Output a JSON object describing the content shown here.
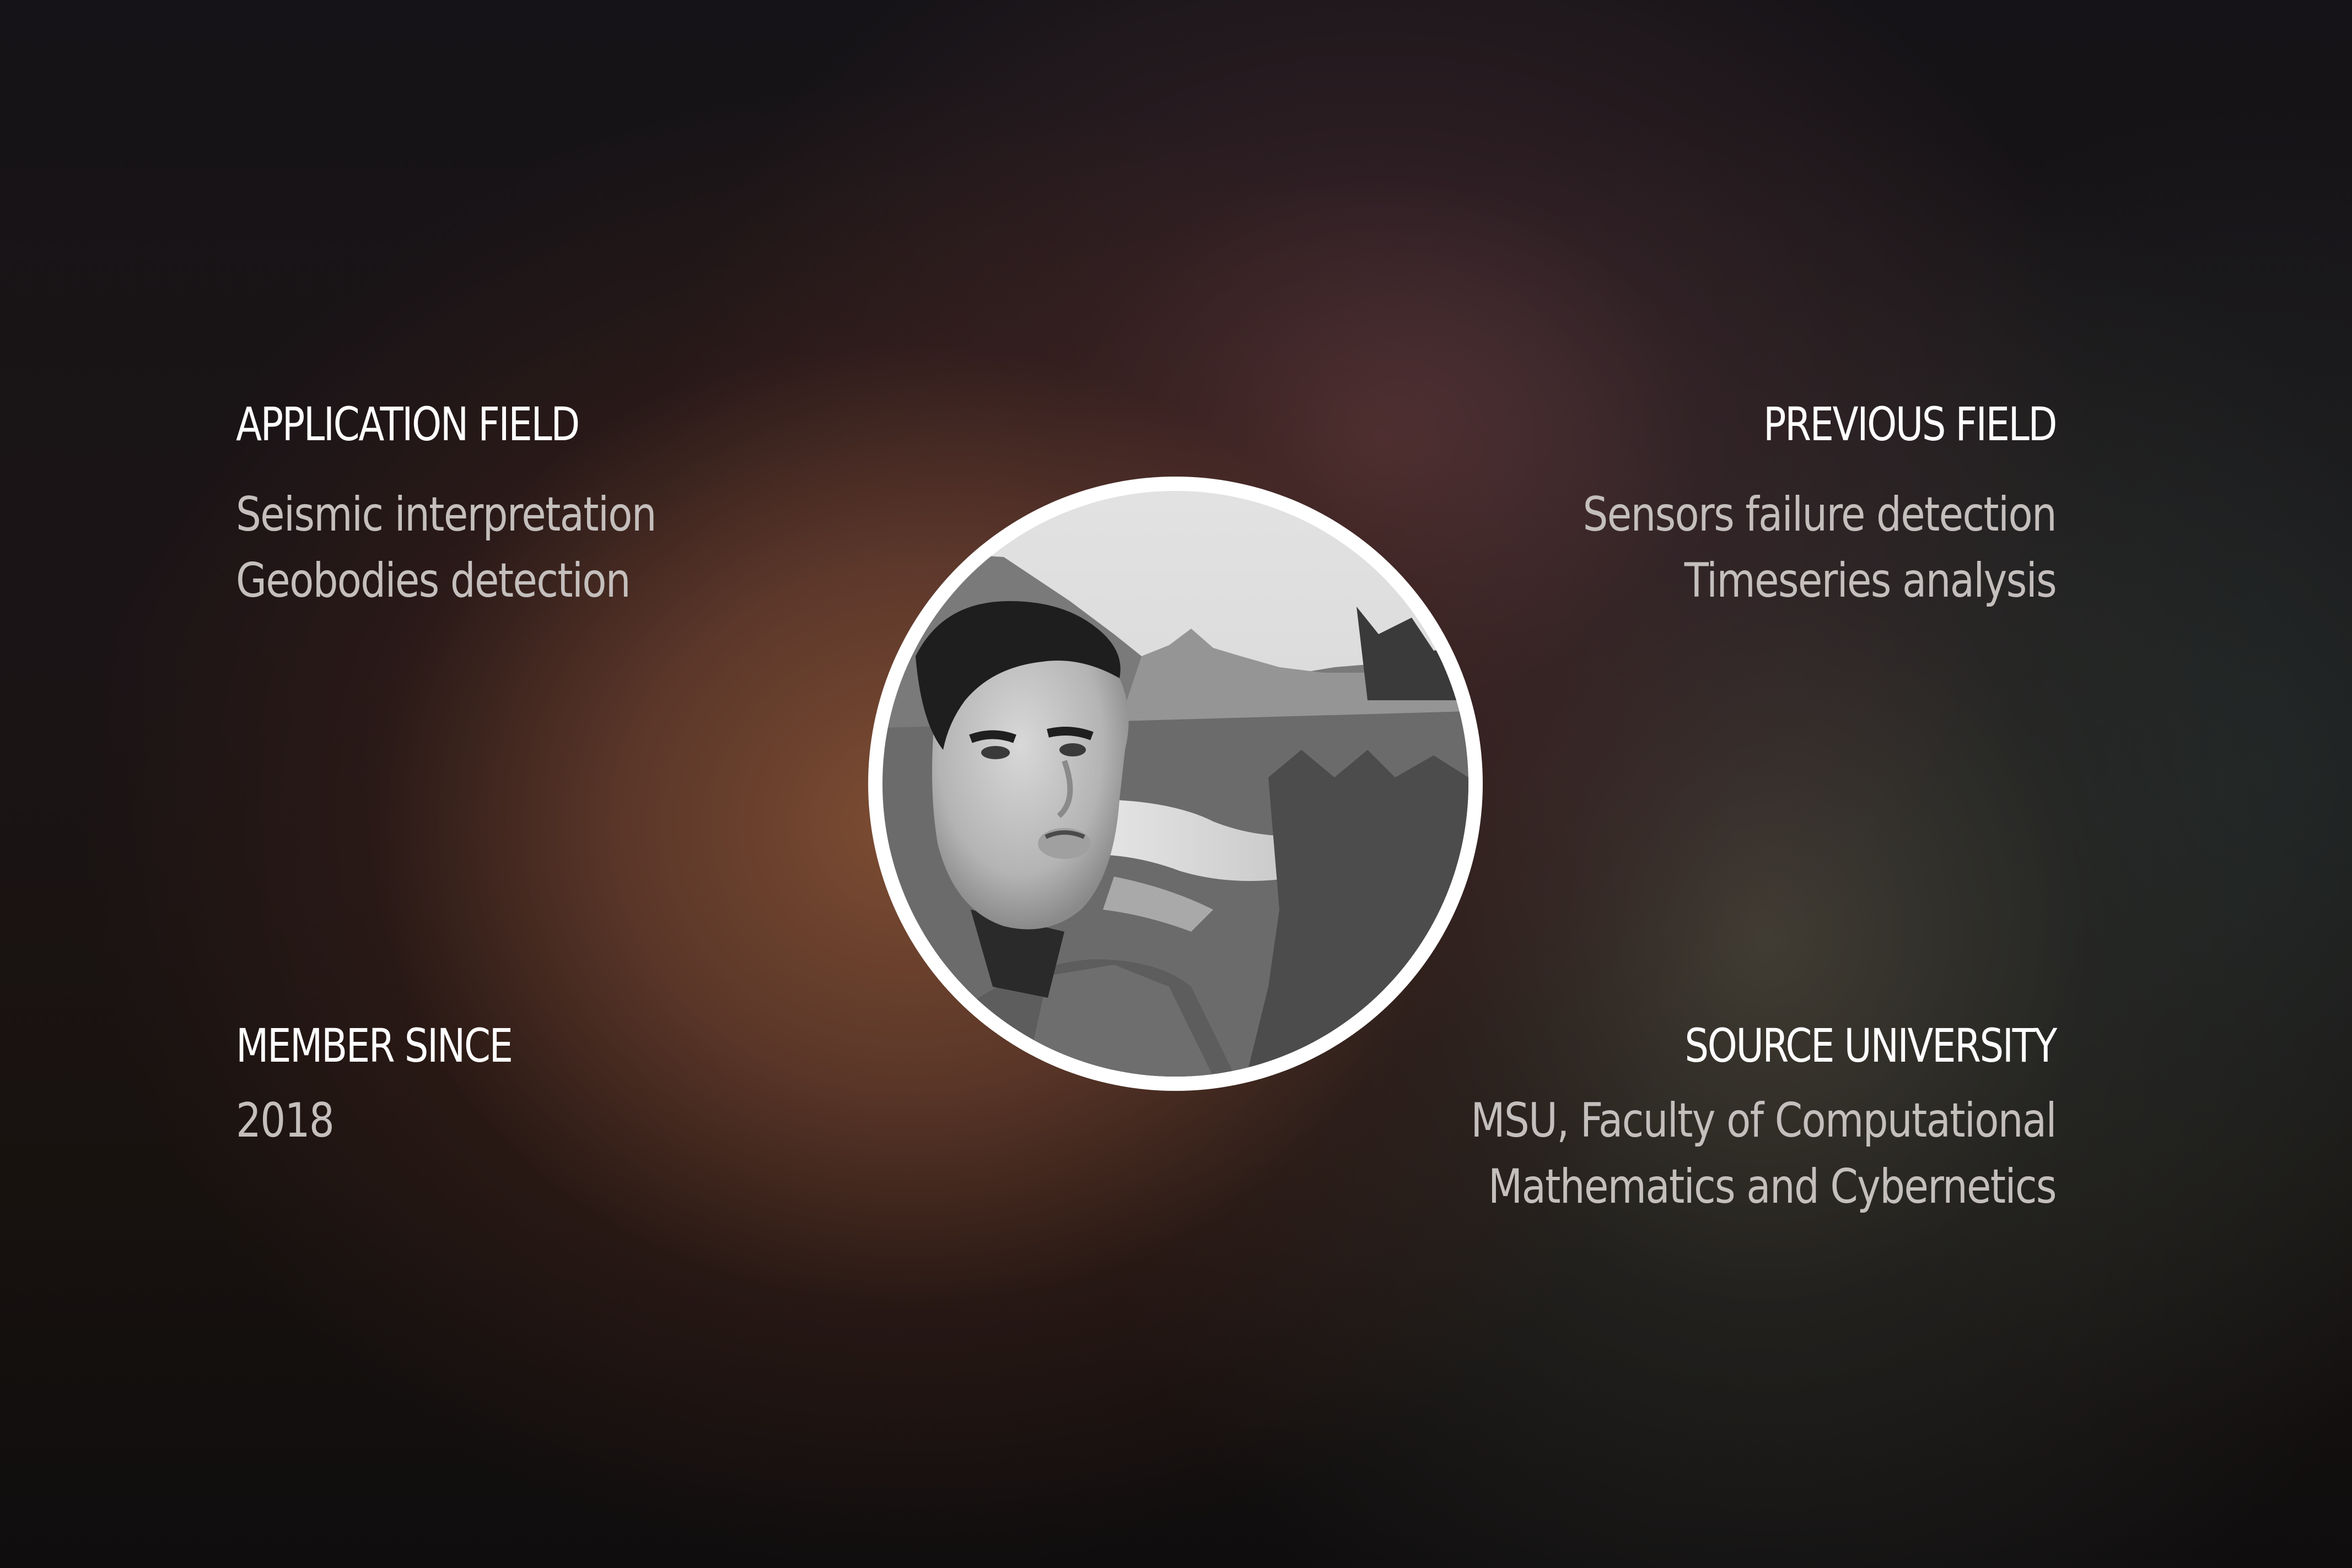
{
  "application_field": {
    "heading": "APPLICATION FIELD",
    "lines": [
      "Seismic interpretation",
      "Geobodies detection"
    ]
  },
  "previous_field": {
    "heading": "PREVIOUS FIELD",
    "lines": [
      "Sensors failure detection",
      "Timeseries analysis"
    ]
  },
  "member_since": {
    "heading": "MEMBER SINCE",
    "lines": [
      "2018"
    ]
  },
  "source_university": {
    "heading": "SOURCE UNIVERSITY",
    "lines": [
      "MSU, Faculty of Computational",
      "Mathematics and Cybernetics"
    ]
  },
  "colors": {
    "heading": "#ffffff",
    "value": "#c4bfbd",
    "avatar_ring": "#ffffff"
  }
}
